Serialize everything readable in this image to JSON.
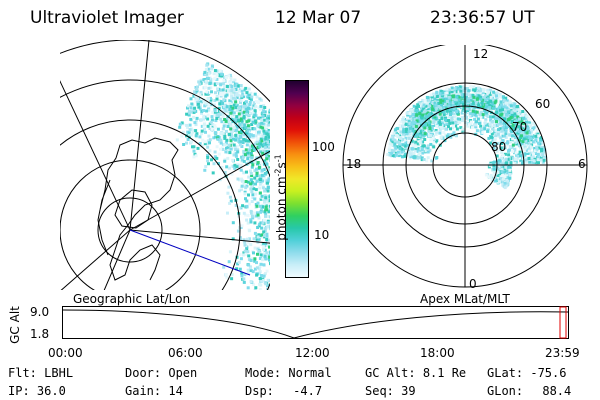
{
  "header": {
    "instrument": "Ultraviolet Imager",
    "date": "12 Mar 07",
    "time": "23:36:57 UT"
  },
  "left_panel": {
    "caption": "Geographic Lat/Lon"
  },
  "right_panel": {
    "caption": "Apex MLat/MLT",
    "mlt_labels": [
      "12",
      "18",
      "6",
      "0"
    ],
    "mlat_labels": [
      "60",
      "70",
      "80"
    ]
  },
  "colorbar": {
    "label": "photon cm",
    "label_sup1": "-2",
    "label_mid": "s",
    "label_sup2": "-1",
    "ticks": [
      "100",
      "10"
    ],
    "scale": "log",
    "colors": [
      "#f0fbff",
      "#c8eef8",
      "#8fdcec",
      "#4fd0d8",
      "#27c8a8",
      "#30d060",
      "#7ce030",
      "#c8f020",
      "#f0e828",
      "#f8c018",
      "#f89010",
      "#f05008",
      "#e01008",
      "#c00018",
      "#900040",
      "#500050",
      "#200030"
    ]
  },
  "timeline": {
    "axis_label": "GC Alt",
    "y_ticks": [
      "9.0",
      "1.8"
    ],
    "x_ticks": [
      "00:00",
      "06:00",
      "12:00",
      "18:00",
      "23:59"
    ]
  },
  "status": {
    "row1": [
      {
        "key": "Flt:",
        "val": "LBHL"
      },
      {
        "key": "Door:",
        "val": "Open"
      },
      {
        "key": "Mode:",
        "val": "Normal"
      },
      {
        "key": "GC Alt:",
        "val": "8.1 Re"
      },
      {
        "key": "GLat:",
        "val": "-75.6"
      }
    ],
    "row2": [
      {
        "key": "IP:",
        "val": "36.0"
      },
      {
        "key": "Gain:",
        "val": "14"
      },
      {
        "key": "Dsp:",
        "val": "-4.7"
      },
      {
        "key": "Seq:",
        "val": "39"
      },
      {
        "key": "GLon:",
        "val": "88.4"
      }
    ]
  }
}
